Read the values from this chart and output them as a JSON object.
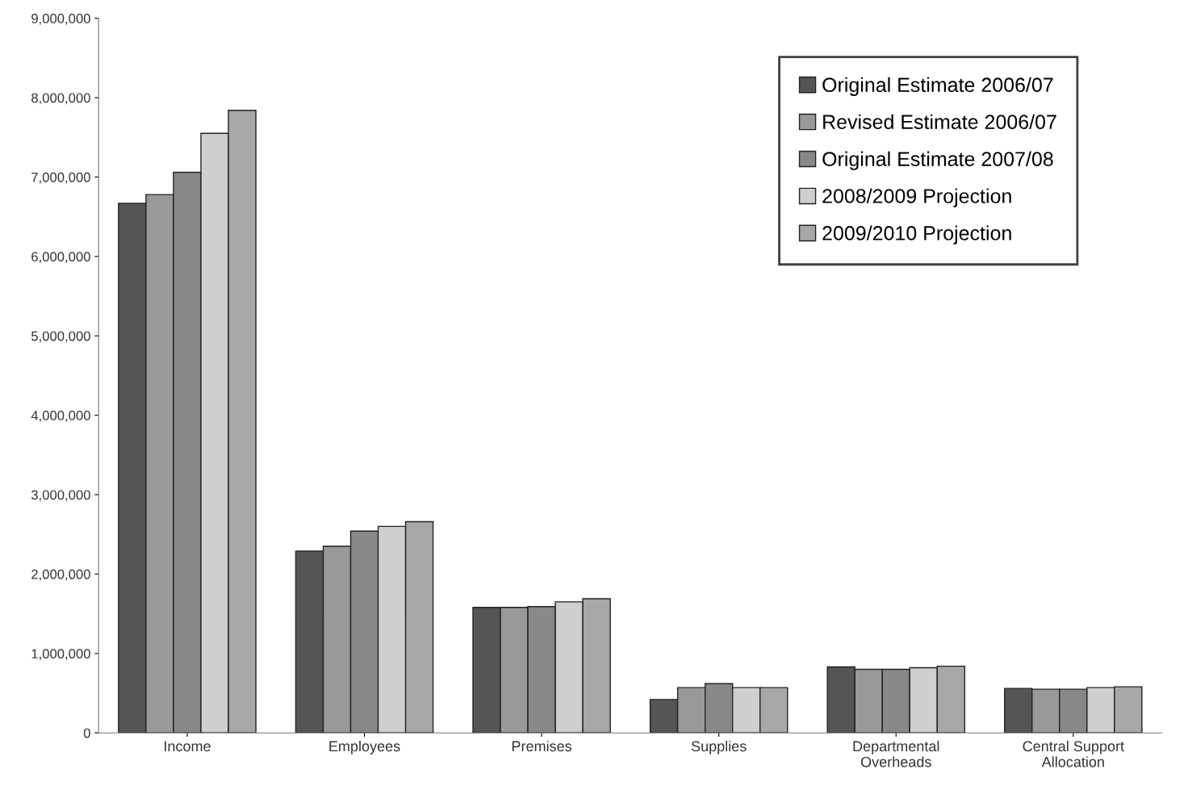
{
  "chart_data": {
    "type": "bar",
    "categories": [
      "Income",
      "Employees",
      "Premises",
      "Supplies",
      "Departmental\nOverheads",
      "Central Support\nAllocation"
    ],
    "series": [
      {
        "name": "Original Estimate 2006/07",
        "color": "#555555",
        "values": [
          6670000,
          2290000,
          1580000,
          420000,
          830000,
          560000
        ]
      },
      {
        "name": "Revised Estimate 2006/07",
        "color": "#999999",
        "values": [
          6780000,
          2350000,
          1580000,
          570000,
          800000,
          550000
        ]
      },
      {
        "name": "Original Estimate 2007/08",
        "color": "#888888",
        "values": [
          7060000,
          2540000,
          1590000,
          620000,
          800000,
          550000
        ]
      },
      {
        "name": "2008/2009 Projection",
        "color": "#cfcfcf",
        "values": [
          7550000,
          2600000,
          1650000,
          570000,
          820000,
          570000
        ]
      },
      {
        "name": "2009/2010 Projection",
        "color": "#a8a8a8",
        "values": [
          7840000,
          2660000,
          1690000,
          570000,
          840000,
          580000
        ]
      }
    ],
    "ylim": [
      0,
      9000000
    ],
    "yticks": [
      0,
      {
        "value": 1000000,
        "label": "1,000,000"
      },
      {
        "value": 2000000,
        "label": "2,000,000"
      },
      {
        "value": 3000000,
        "label": "3,000,000"
      },
      {
        "value": 4000000,
        "label": "4,000,000"
      },
      {
        "value": 5000000,
        "label": "5,000,000"
      },
      {
        "value": 6000000,
        "label": "6,000,000"
      },
      {
        "value": 7000000,
        "label": "7,000,000"
      },
      {
        "value": 8000000,
        "label": "8,000,000"
      },
      {
        "value": 9000000,
        "label": "9,000,000"
      }
    ],
    "grid": false,
    "legend": "top right"
  }
}
